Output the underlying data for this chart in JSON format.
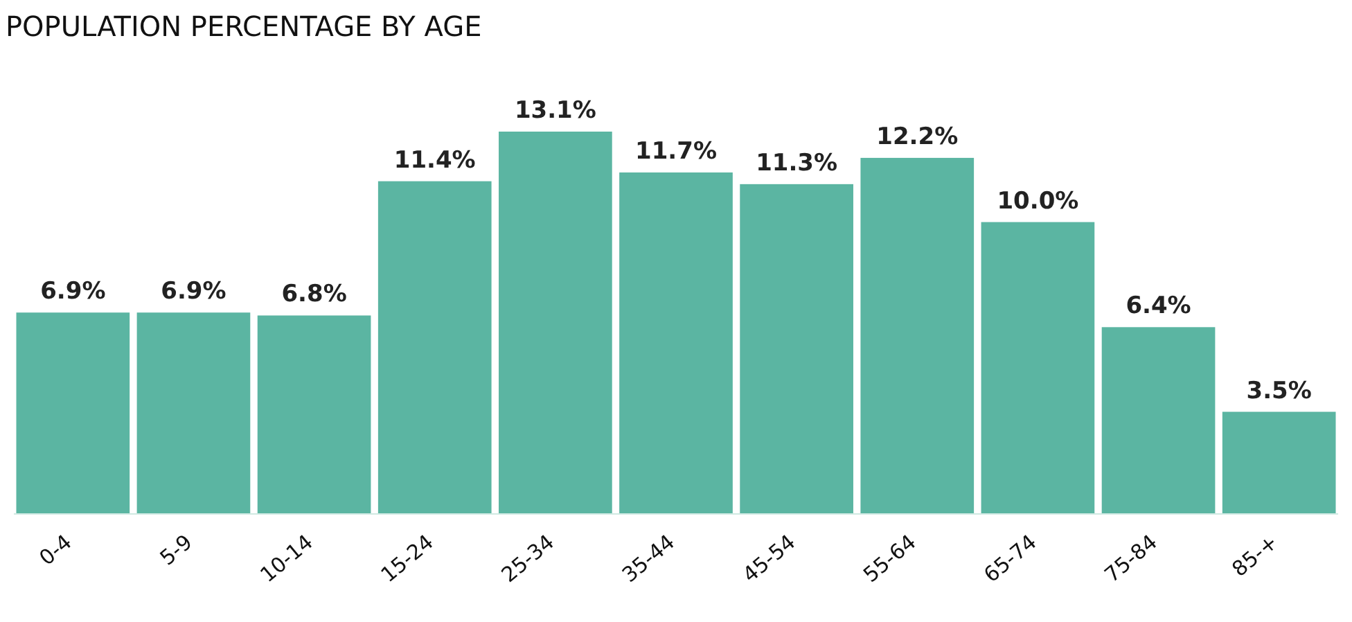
{
  "chart_data": {
    "type": "bar",
    "title": "POPULATION PERCENTAGE BY AGE",
    "categories": [
      "0-4",
      "5-9",
      "10-14",
      "15-24",
      "25-34",
      "35-44",
      "45-54",
      "55-64",
      "65-74",
      "75-84",
      "85-+"
    ],
    "values": [
      6.9,
      6.9,
      6.8,
      11.4,
      13.1,
      11.7,
      11.3,
      12.2,
      10.0,
      6.4,
      3.5
    ],
    "value_labels": [
      "6.9%",
      "6.9%",
      "6.8%",
      "11.4%",
      "13.1%",
      "11.7%",
      "11.3%",
      "12.2%",
      "10.0%",
      "6.4%",
      "3.5%"
    ],
    "color": "#5bb5a2"
  }
}
